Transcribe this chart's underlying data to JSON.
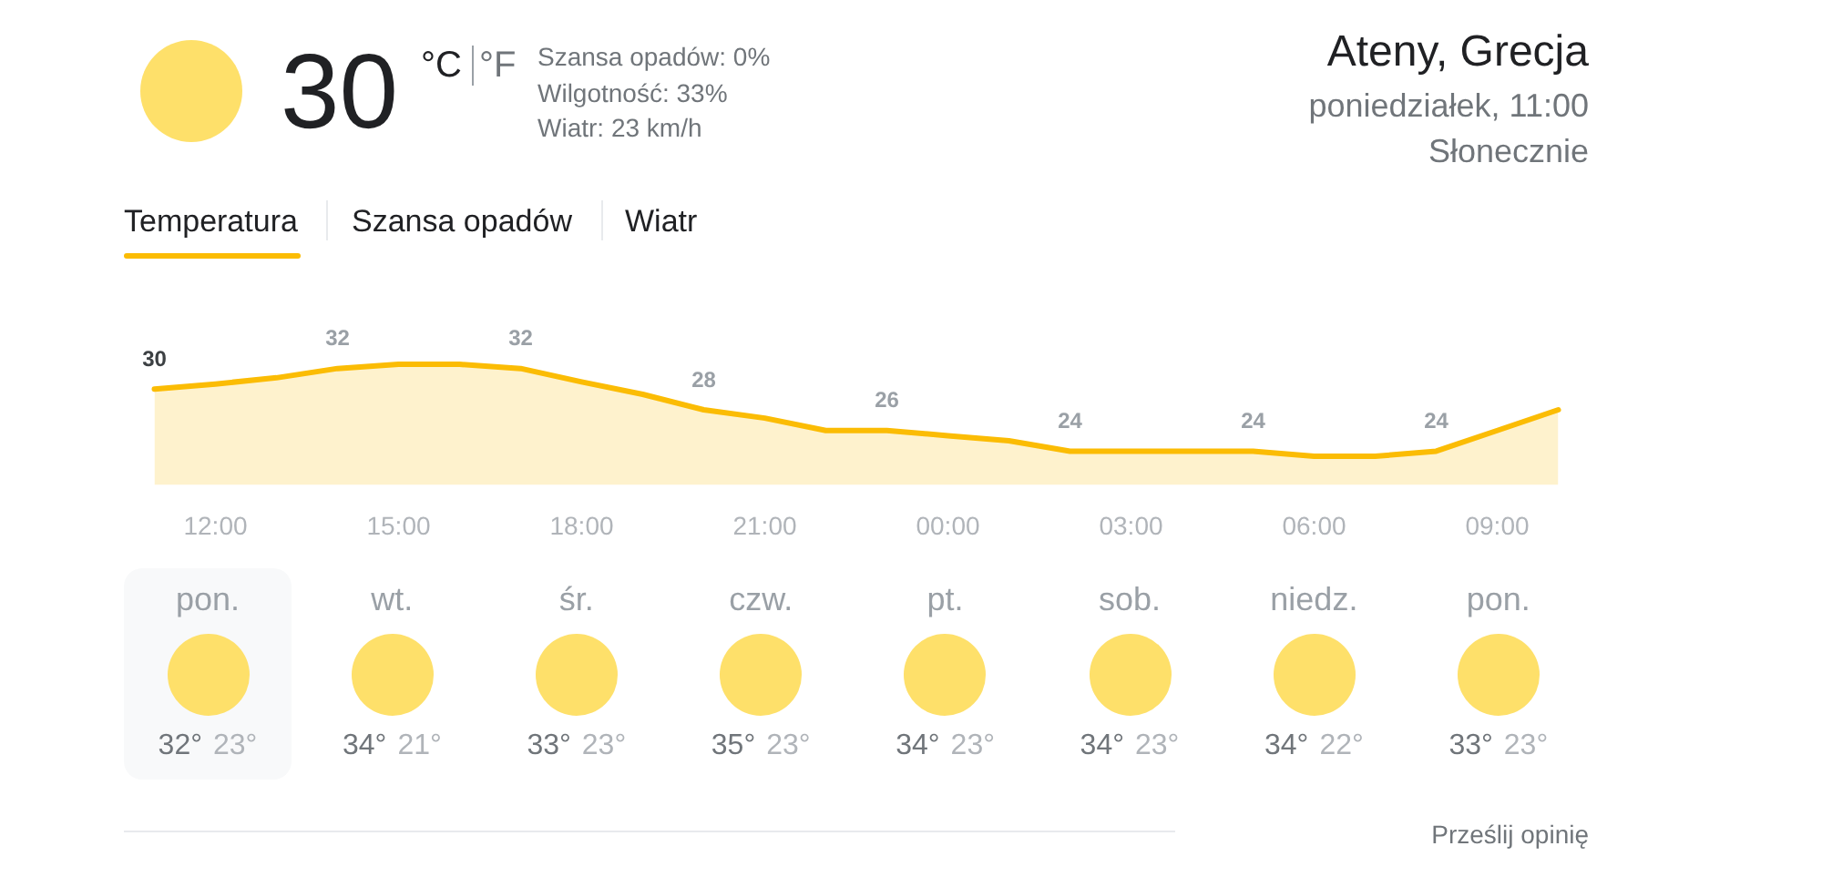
{
  "chart_data": [
    {
      "type": "area",
      "title": "Ateny, Grecja",
      "subtitle": "poniedziałek, 11:00",
      "annotations": [
        "30",
        "°C",
        "°F",
        "Szansa opadów: 0%",
        "Wilgotność: 33%",
        "Wiatr: 23 km/h",
        "Słonecznie",
        "Temperatura",
        "Szansa opadów",
        "Wiatr"
      ],
      "categories": [
        null,
        "12:00",
        null,
        null,
        "15:00",
        null,
        null,
        "18:00",
        null,
        null,
        "21:00",
        null,
        null,
        "00:00",
        null,
        null,
        "03:00",
        null,
        null,
        "06:00",
        null,
        null,
        "09:00",
        null
      ],
      "values": [
        30,
        30.5,
        31.1,
        32,
        32.4,
        32.4,
        32,
        30.7,
        29.5,
        28,
        27.2,
        26,
        26,
        25.5,
        25,
        24,
        24,
        24,
        24,
        23.5,
        23.5,
        24,
        26,
        28
      ],
      "value_labels": [
        "30",
        null,
        null,
        "32",
        null,
        null,
        "32",
        null,
        null,
        "28",
        null,
        null,
        "26",
        null,
        null,
        "24",
        null,
        null,
        "24",
        null,
        null,
        "24",
        null,
        null
      ],
      "color": "#fbbc04",
      "tick_labels": "x"
    },
    {
      "type": "other",
      "categories": [
        "pon.",
        "wt.",
        "śr.",
        "czw.",
        "pt.",
        "sob.",
        "niedz.",
        "pon."
      ],
      "series": [
        {
          "color": "#70757a",
          "values": [
            32,
            34,
            33,
            35,
            34,
            34,
            34,
            33
          ],
          "value_labels": [
            "32°",
            "34°",
            "33°",
            "35°",
            "34°",
            "34°",
            "34°",
            "33°"
          ]
        },
        {
          "color": "#b0b4b9",
          "values": [
            23,
            21,
            23,
            23,
            23,
            23,
            22,
            23
          ],
          "value_labels": [
            "23°",
            "21°",
            "23°",
            "23°",
            "23°",
            "23°",
            "22°",
            "23°"
          ]
        }
      ],
      "annotations": [
        "Prześlij opinię"
      ]
    }
  ]
}
